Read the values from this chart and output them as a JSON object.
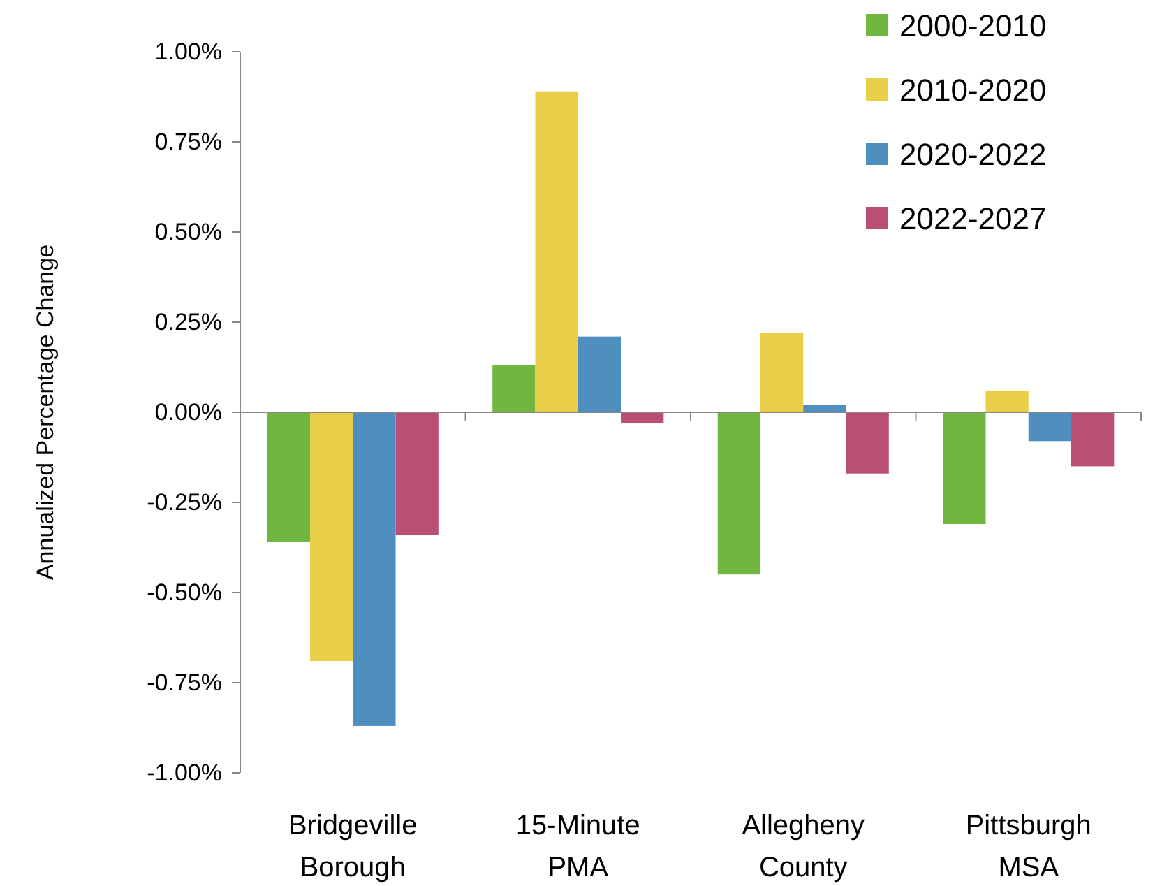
{
  "chart_data": {
    "type": "bar",
    "ylabel": "Annualized Percentage Change",
    "categories": [
      "Bridgeville Borough",
      "15-Minute PMA",
      "Allegheny County",
      "Pittsburgh MSA"
    ],
    "series": [
      {
        "name": "2000-2010",
        "color": "#70b63f",
        "values": [
          -0.36,
          0.13,
          -0.45,
          -0.31
        ]
      },
      {
        "name": "2010-2020",
        "color": "#e8cf47",
        "values": [
          -0.69,
          0.89,
          0.22,
          0.06
        ]
      },
      {
        "name": "2020-2022",
        "color": "#4e8fc0",
        "values": [
          -0.87,
          0.21,
          0.02,
          -0.08
        ]
      },
      {
        "name": "2022-2027",
        "color": "#b94f72",
        "values": [
          -0.34,
          -0.03,
          -0.17,
          -0.15
        ]
      }
    ],
    "ylim": [
      -1,
      1
    ],
    "yticks": [
      {
        "value": -1,
        "label": "-1.00%"
      },
      {
        "value": -0.75,
        "label": "-0.75%"
      },
      {
        "value": -0.5,
        "label": "-0.50%"
      },
      {
        "value": -0.25,
        "label": "-0.25%"
      },
      {
        "value": 0,
        "label": "0.00%"
      },
      {
        "value": 0.25,
        "label": "0.25%"
      },
      {
        "value": 0.5,
        "label": "0.50%"
      },
      {
        "value": 0.75,
        "label": "0.75%"
      },
      {
        "value": 1,
        "label": "1.00%"
      }
    ],
    "legend": "top right"
  }
}
